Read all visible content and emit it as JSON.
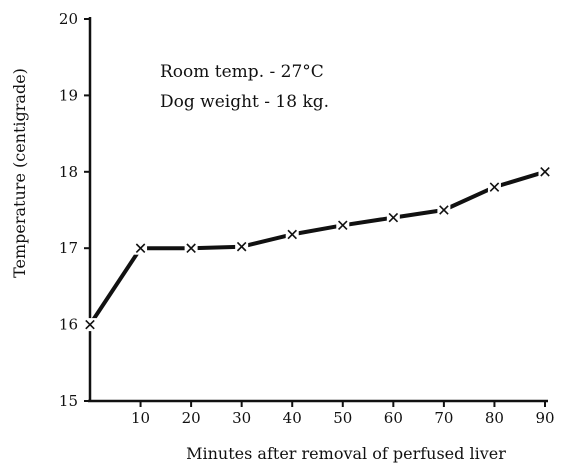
{
  "chart_data": {
    "type": "line",
    "title": "",
    "xlabel": "Minutes after removal of perfused liver",
    "ylabel": "Temperature (centigrade)",
    "xlim": [
      0,
      90
    ],
    "ylim": [
      15,
      20
    ],
    "x_ticks": [
      "10",
      "20",
      "30",
      "40",
      "50",
      "60",
      "70",
      "80",
      "90"
    ],
    "y_ticks": [
      "15",
      "16",
      "17",
      "18",
      "19",
      "20"
    ],
    "grid": false,
    "marker": "x",
    "series": [
      {
        "x": [
          0,
          10,
          20,
          30,
          40,
          50,
          60,
          70,
          80,
          90
        ],
        "y": [
          16.0,
          17.0,
          17.0,
          17.02,
          17.18,
          17.3,
          17.4,
          17.5,
          17.8,
          18.0
        ]
      }
    ],
    "annotations": [
      "Room temp. - 27°C",
      "Dog weight - 18 kg."
    ]
  }
}
